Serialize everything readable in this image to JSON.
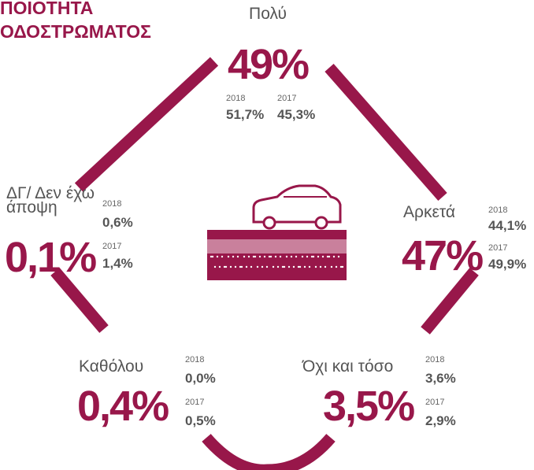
{
  "title": [
    "ΠΟΙΟΤΗΤΑ",
    "ΟΔΟΣΤΡΩΜΑΤΟΣ"
  ],
  "items": [
    {
      "label": [
        "Πολύ"
      ],
      "value": "49%",
      "history": [
        {
          "year": "2018",
          "value": "51,7%"
        },
        {
          "year": "2017",
          "value": "45,3%"
        }
      ]
    },
    {
      "label": [
        "ΔΓ/ Δεν έχω",
        "άποψη"
      ],
      "value": "0,1%",
      "history": [
        {
          "year": "2018",
          "value": "0,6%"
        },
        {
          "year": "2017",
          "value": "1,4%"
        }
      ]
    },
    {
      "label": [
        "Αρκετά"
      ],
      "value": "47%",
      "history": [
        {
          "year": "2018",
          "value": "44,1%"
        },
        {
          "year": "2017",
          "value": "49,9%"
        }
      ]
    },
    {
      "label": [
        "Καθόλου"
      ],
      "value": "0,4%",
      "history": [
        {
          "year": "2018",
          "value": "0,0%"
        },
        {
          "year": "2017",
          "value": "0,5%"
        }
      ]
    },
    {
      "label": [
        "Όχι και τόσο"
      ],
      "value": "3,5%",
      "history": [
        {
          "year": "2018",
          "value": "3,6%"
        },
        {
          "year": "2017",
          "value": "2,9%"
        }
      ]
    }
  ]
}
